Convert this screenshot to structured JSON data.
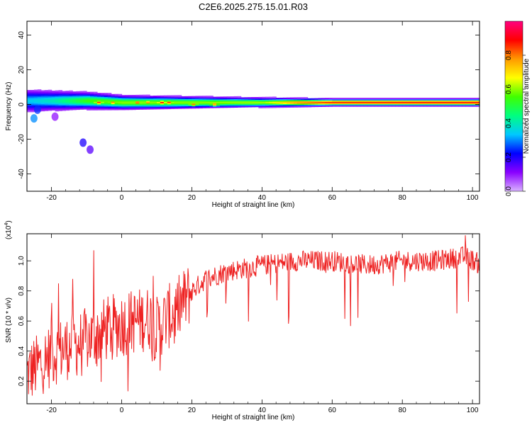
{
  "title": "C2E6.2025.275.15.01.R03",
  "colors": {
    "snr_line": "#ee2222",
    "axis": "#000000",
    "background": "#ffffff"
  },
  "chart_data": [
    {
      "type": "heatmap",
      "name": "spectrogram",
      "xlabel": "Height of straight line (km)",
      "ylabel": "Frequency (Hz)",
      "xlim": [
        -27,
        102
      ],
      "ylim": [
        -50,
        48
      ],
      "xticks": [
        -20,
        0,
        20,
        40,
        60,
        80,
        100
      ],
      "yticks": [
        -40,
        -20,
        0,
        20,
        40
      ],
      "colorbar": {
        "label": "Normalized spectral amplitude",
        "range": [
          0.0,
          1.0
        ],
        "ticks": [
          0.0,
          0.2,
          0.4,
          0.6,
          0.8
        ],
        "colormap": [
          "#d9b3ff",
          "#8a00ff",
          "#0000ff",
          "#00c8ff",
          "#00ff80",
          "#40ff00",
          "#ffff00",
          "#ff9900",
          "#ff0000",
          "#ff007f"
        ]
      },
      "band": {
        "center_freq": [
          [
            -26,
            2
          ],
          [
            -20,
            2
          ],
          [
            -10,
            2
          ],
          [
            0,
            1
          ],
          [
            20,
            1
          ],
          [
            40,
            1
          ],
          [
            60,
            1
          ],
          [
            80,
            1
          ],
          [
            100,
            1
          ]
        ],
        "half_width_hz": [
          [
            -26,
            5
          ],
          [
            -15,
            4
          ],
          [
            0,
            3
          ],
          [
            20,
            2.5
          ],
          [
            40,
            2
          ],
          [
            60,
            1.5
          ],
          [
            100,
            1.5
          ]
        ],
        "peak_amplitude": [
          [
            -26,
            0.35
          ],
          [
            -20,
            0.4
          ],
          [
            -10,
            0.55
          ],
          [
            0,
            0.6
          ],
          [
            20,
            0.6
          ],
          [
            40,
            0.62
          ],
          [
            50,
            0.8
          ],
          [
            60,
            0.88
          ],
          [
            100,
            0.9
          ]
        ],
        "hotspots": [
          {
            "x": -7,
            "y": 1,
            "amp": 0.85
          },
          {
            "x": -3,
            "y": 1,
            "amp": 0.8
          },
          {
            "x": 4,
            "y": 1,
            "amp": 0.85
          },
          {
            "x": 7,
            "y": 1,
            "amp": 0.8
          },
          {
            "x": 11,
            "y": 1,
            "amp": 0.9
          },
          {
            "x": 13,
            "y": 1,
            "amp": 0.85
          },
          {
            "x": 20,
            "y": 0,
            "amp": 0.8
          },
          {
            "x": 26,
            "y": 0,
            "amp": 0.8
          }
        ],
        "stray_blobs": [
          {
            "x": -25,
            "y": -8,
            "amp": 0.3
          },
          {
            "x": -24,
            "y": -3,
            "amp": 0.25
          },
          {
            "x": -11,
            "y": -22,
            "amp": 0.2
          },
          {
            "x": -9,
            "y": -26,
            "amp": 0.15
          },
          {
            "x": -19,
            "y": -7,
            "amp": 0.1
          }
        ]
      }
    },
    {
      "type": "line",
      "name": "snr",
      "xlabel": "Height of straight line (km)",
      "ylabel": "SNR (10 * v/v)",
      "multiplier_label": "(x10",
      "multiplier_exp": "4",
      "multiplier_close": ")",
      "xlim": [
        -27,
        102
      ],
      "ylim": [
        0.05,
        1.18
      ],
      "xticks": [
        -20,
        0,
        20,
        40,
        60,
        80,
        100
      ],
      "yticks": [
        0.2,
        0.4,
        0.6,
        0.8,
        1.0
      ],
      "trend": [
        [
          -27,
          0.25
        ],
        [
          -24,
          0.3
        ],
        [
          -20,
          0.38
        ],
        [
          -16,
          0.42
        ],
        [
          -12,
          0.45
        ],
        [
          -8,
          0.5
        ],
        [
          -4,
          0.55
        ],
        [
          0,
          0.58
        ],
        [
          4,
          0.6
        ],
        [
          8,
          0.62
        ],
        [
          10,
          0.55
        ],
        [
          12,
          0.6
        ],
        [
          16,
          0.68
        ],
        [
          20,
          0.8
        ],
        [
          24,
          0.88
        ],
        [
          30,
          0.93
        ],
        [
          40,
          0.97
        ],
        [
          50,
          1.0
        ],
        [
          60,
          1.0
        ],
        [
          70,
          0.97
        ],
        [
          80,
          1.0
        ],
        [
          90,
          1.0
        ],
        [
          98,
          1.03
        ],
        [
          102,
          0.98
        ]
      ],
      "spikes": [
        [
          -8,
          1.07
        ],
        [
          -14,
          0.88
        ],
        [
          -18,
          0.85
        ],
        [
          9,
          0.9
        ],
        [
          15,
          0.45
        ],
        [
          11,
          0.27
        ],
        [
          98,
          1.17
        ],
        [
          -20,
          0.72
        ]
      ]
    }
  ]
}
